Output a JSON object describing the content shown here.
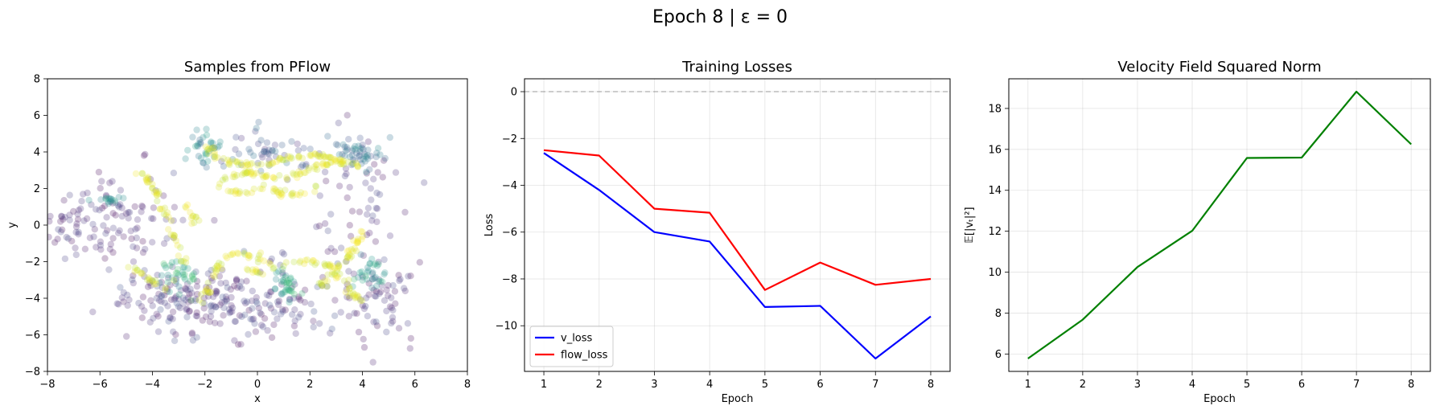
{
  "figure": {
    "suptitle": "Epoch 8 | ε = 0"
  },
  "chart_data": [
    {
      "type": "scatter",
      "title": "Samples from PFlow",
      "xlabel": "x",
      "ylabel": "y",
      "xlim": [
        -8,
        8
      ],
      "ylim": [
        -8,
        8
      ],
      "xticks": [
        -8,
        -6,
        -4,
        -2,
        0,
        2,
        4,
        6,
        8
      ],
      "yticks": [
        -8,
        -6,
        -4,
        -2,
        0,
        2,
        4,
        6,
        8
      ],
      "grid": false,
      "colormap": "viridis",
      "point_alpha": 0.25,
      "clusters": [
        {
          "x": -6.5,
          "y": 0.0,
          "sx": 1.1,
          "sy": 1.0,
          "n": 90,
          "c": [
            0.0,
            0.2
          ]
        },
        {
          "x": -2.8,
          "y": -4.0,
          "sx": 1.4,
          "sy": 0.9,
          "n": 140,
          "c": [
            0.0,
            0.25
          ]
        },
        {
          "x": 0.5,
          "y": -4.2,
          "sx": 1.5,
          "sy": 1.0,
          "n": 110,
          "c": [
            0.0,
            0.25
          ]
        },
        {
          "x": 4.4,
          "y": -4.2,
          "sx": 0.9,
          "sy": 1.2,
          "n": 70,
          "c": [
            0.0,
            0.25
          ]
        },
        {
          "x": 3.8,
          "y": 1.2,
          "sx": 0.9,
          "sy": 1.6,
          "n": 50,
          "c": [
            0.0,
            0.2
          ]
        },
        {
          "x": -4.5,
          "y": 0.8,
          "sx": 0.9,
          "sy": 1.5,
          "n": 40,
          "c": [
            0.0,
            0.2
          ]
        },
        {
          "x": 0.5,
          "y": 3.9,
          "sx": 0.7,
          "sy": 0.6,
          "n": 50,
          "c": [
            0.1,
            0.4
          ]
        },
        {
          "x": 3.8,
          "y": 4.0,
          "sx": 0.5,
          "sy": 0.4,
          "n": 50,
          "c": [
            0.2,
            0.5
          ]
        },
        {
          "x": -2.0,
          "y": 4.2,
          "sx": 0.3,
          "sy": 0.5,
          "n": 35,
          "c": [
            0.3,
            0.6
          ]
        },
        {
          "x": 1.0,
          "y": -3.2,
          "sx": 0.3,
          "sy": 0.4,
          "n": 35,
          "c": [
            0.4,
            0.7
          ]
        },
        {
          "x": -2.9,
          "y": -2.8,
          "sx": 0.4,
          "sy": 0.5,
          "n": 35,
          "c": [
            0.4,
            0.75
          ]
        },
        {
          "x": 4.3,
          "y": -2.6,
          "sx": 0.3,
          "sy": 0.6,
          "n": 30,
          "c": [
            0.4,
            0.7
          ]
        },
        {
          "x": -5.7,
          "y": 1.4,
          "sx": 0.4,
          "sy": 0.1,
          "n": 15,
          "c": [
            0.4,
            0.6
          ]
        }
      ],
      "curves": [
        {
          "pts": [
            [
              -1.9,
              4.4
            ],
            [
              -1.5,
              3.6
            ],
            [
              -0.5,
              3.3
            ],
            [
              0.5,
              3.4
            ],
            [
              1.3,
              3.7
            ],
            [
              2.2,
              3.9
            ],
            [
              2.9,
              3.6
            ],
            [
              3.4,
              3.4
            ]
          ],
          "n": 80
        },
        {
          "pts": [
            [
              -1.6,
              2.1
            ],
            [
              -1.0,
              2.7
            ],
            [
              -0.3,
              2.9
            ],
            [
              0.5,
              2.6
            ],
            [
              1.4,
              2.7
            ],
            [
              2.2,
              3.2
            ],
            [
              3.0,
              3.5
            ],
            [
              3.9,
              3.3
            ]
          ],
          "n": 70
        },
        {
          "pts": [
            [
              -1.2,
              2.0
            ],
            [
              -0.5,
              1.7
            ],
            [
              0.4,
              2.1
            ],
            [
              1.0,
              1.6
            ],
            [
              1.8,
              1.7
            ],
            [
              2.3,
              2.1
            ]
          ],
          "n": 40
        },
        {
          "pts": [
            [
              -4.6,
              2.9
            ],
            [
              -4.0,
              2.2
            ],
            [
              -3.6,
              1.0
            ],
            [
              -3.4,
              0.0
            ],
            [
              -3.0,
              -1.0
            ],
            [
              -2.7,
              -2.2
            ]
          ],
          "n": 45
        },
        {
          "pts": [
            [
              -2.7,
              1.1
            ],
            [
              -2.4,
              0.4
            ],
            [
              -2.5,
              0.0
            ]
          ],
          "n": 12
        },
        {
          "pts": [
            [
              -2.2,
              -4.2
            ],
            [
              -1.7,
              -3.2
            ],
            [
              -1.4,
              -2.0
            ],
            [
              -0.8,
              -1.4
            ],
            [
              0.0,
              -1.8
            ],
            [
              0.7,
              -2.4
            ],
            [
              1.3,
              -2.0
            ],
            [
              2.2,
              -2.0
            ],
            [
              3.0,
              -2.4
            ],
            [
              3.7,
              -1.4
            ],
            [
              4.0,
              -0.4
            ]
          ],
          "n": 100
        },
        {
          "pts": [
            [
              2.4,
              -3.3
            ],
            [
              2.9,
              -2.6
            ],
            [
              3.3,
              -3.1
            ],
            [
              3.6,
              -3.8
            ],
            [
              4.1,
              -4.2
            ]
          ],
          "n": 35
        },
        {
          "pts": [
            [
              -4.8,
              -2.3
            ],
            [
              -4.2,
              -2.9
            ],
            [
              -3.6,
              -3.4
            ],
            [
              -3.1,
              -3.0
            ]
          ],
          "n": 20
        },
        {
          "pts": [
            [
              -0.4,
              -2.4
            ],
            [
              -0.1,
              -2.5
            ],
            [
              0.2,
              -2.7
            ]
          ],
          "n": 10
        }
      ]
    },
    {
      "type": "line",
      "title": "Training Losses",
      "xlabel": "Epoch",
      "ylabel": "Loss",
      "x": [
        1,
        2,
        3,
        4,
        5,
        6,
        7,
        8
      ],
      "xlim": [
        0.65,
        8.35
      ],
      "ylim": [
        -11.95,
        0.55
      ],
      "xticks": [
        1,
        2,
        3,
        4,
        5,
        6,
        7,
        8
      ],
      "yticks": [
        0,
        -2,
        -4,
        -6,
        -8,
        -10
      ],
      "grid": true,
      "legend": "lower left",
      "hline": 0,
      "series": [
        {
          "name": "v_loss",
          "color": "#0000ff",
          "values": [
            -2.62,
            -4.2,
            -6.0,
            -6.4,
            -9.2,
            -9.15,
            -11.4,
            -9.6
          ]
        },
        {
          "name": "flow_loss",
          "color": "#ff0000",
          "values": [
            -2.5,
            -2.73,
            -5.0,
            -5.17,
            -8.47,
            -7.3,
            -8.25,
            -8.0
          ]
        }
      ]
    },
    {
      "type": "line",
      "title": "Velocity Field Squared Norm",
      "xlabel": "Epoch",
      "ylabel": "𝔼[|vₜ|²]",
      "x": [
        1,
        2,
        3,
        4,
        5,
        6,
        7,
        8
      ],
      "xlim": [
        0.65,
        8.35
      ],
      "ylim": [
        5.15,
        19.45
      ],
      "xticks": [
        1,
        2,
        3,
        4,
        5,
        6,
        7,
        8
      ],
      "yticks": [
        6,
        8,
        10,
        12,
        14,
        16,
        18
      ],
      "grid": true,
      "series": [
        {
          "color": "#008000",
          "values": [
            5.78,
            7.68,
            10.25,
            12.02,
            15.58,
            15.6,
            18.82,
            16.25
          ]
        }
      ]
    }
  ]
}
